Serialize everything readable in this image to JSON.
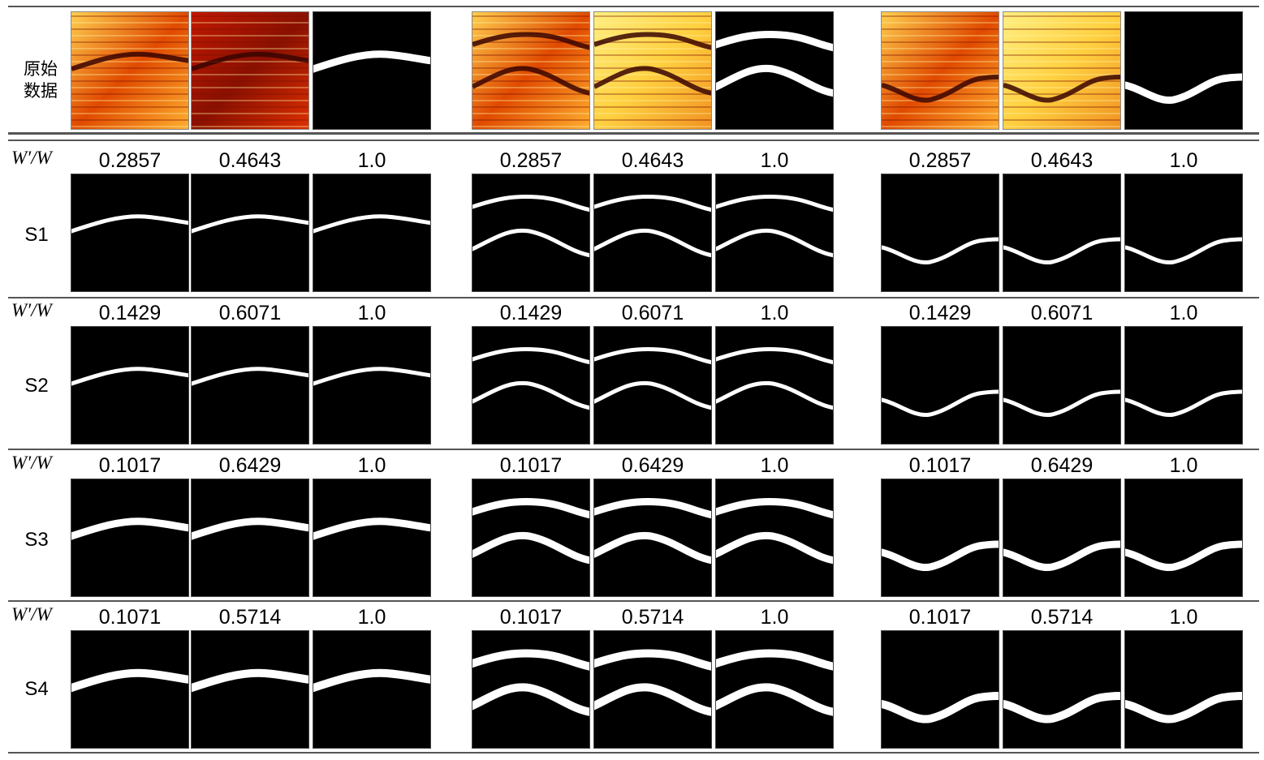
{
  "original_row": {
    "label": "原始\n数据",
    "label_lines": [
      "原始",
      "数据"
    ]
  },
  "ratio_label": "W′/W",
  "rows": [
    {
      "name": "S1",
      "groups": [
        [
          "0.2857",
          "0.4643",
          "1.0"
        ],
        [
          "0.2857",
          "0.4643",
          "1.0"
        ],
        [
          "0.2857",
          "0.4643",
          "1.0"
        ]
      ]
    },
    {
      "name": "S2",
      "groups": [
        [
          "0.1429",
          "0.6071",
          "1.0"
        ],
        [
          "0.1429",
          "0.6071",
          "1.0"
        ],
        [
          "0.1429",
          "0.6071",
          "1.0"
        ]
      ]
    },
    {
      "name": "S3",
      "groups": [
        [
          "0.1017",
          "0.6429",
          "1.0"
        ],
        [
          "0.1017",
          "0.6429",
          "1.0"
        ],
        [
          "0.1017",
          "0.6429",
          "1.0"
        ]
      ]
    },
    {
      "name": "S4",
      "groups": [
        [
          "0.1071",
          "0.5714",
          "1.0"
        ],
        [
          "0.1017",
          "0.5714",
          "1.0"
        ],
        [
          "0.1017",
          "0.5714",
          "1.0"
        ]
      ]
    }
  ],
  "colors": {
    "background": "#ffffff",
    "separator": "#555555",
    "mask_bg": "#000000",
    "mask_fg": "#ffffff",
    "heat_dark": "#5a0a00",
    "heat_mid": "#d83a00",
    "heat_bright": "#ffe060"
  }
}
